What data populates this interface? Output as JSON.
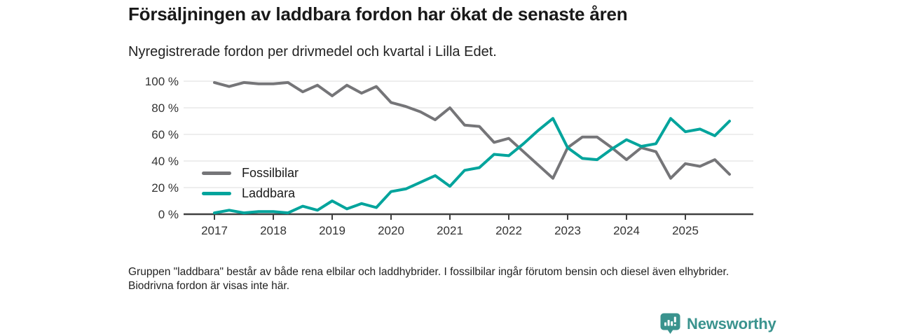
{
  "header": {
    "title": "Försäljningen av laddbara fordon har ökat de senaste åren",
    "subtitle": "Nyregistrerade fordon per drivmedel och kvartal i Lilla Edet."
  },
  "footnote": "Gruppen \"laddbara\" består av både rena elbilar och laddhybrider. I fossilbilar ingår förutom bensin och diesel även elhybrider. Biodrivna fordon är visas inte här.",
  "branding": {
    "logo_icon": "newsworthy-bar-chart-bubble-icon",
    "wordmark": "Newsworthy",
    "color": "#3a938e"
  },
  "chart_data": {
    "type": "line",
    "title": "Försäljningen av laddbara fordon har ökat de senaste åren",
    "subtitle": "Nyregistrerade fordon per drivmedel och kvartal i Lilla Edet.",
    "unit": "percent",
    "ylim": [
      0,
      100
    ],
    "grid": true,
    "legend_position": "inside-left",
    "yticks": [
      "0 %",
      "20 %",
      "40 %",
      "60 %",
      "80 %",
      "100 %"
    ],
    "xticks": [
      {
        "label": "2017",
        "index": 0
      },
      {
        "label": "2018",
        "index": 4
      },
      {
        "label": "2019",
        "index": 8
      },
      {
        "label": "2020",
        "index": 12
      },
      {
        "label": "2021",
        "index": 16
      },
      {
        "label": "2022",
        "index": 20
      },
      {
        "label": "2023",
        "index": 24
      },
      {
        "label": "2024",
        "index": 28
      },
      {
        "label": "2025",
        "index": 32
      }
    ],
    "x": [
      "2017 Q1",
      "2017 Q2",
      "2017 Q3",
      "2017 Q4",
      "2018 Q1",
      "2018 Q2",
      "2018 Q3",
      "2018 Q4",
      "2019 Q1",
      "2019 Q2",
      "2019 Q3",
      "2019 Q4",
      "2020 Q1",
      "2020 Q2",
      "2020 Q3",
      "2020 Q4",
      "2021 Q1",
      "2021 Q2",
      "2021 Q3",
      "2021 Q4",
      "2022 Q1",
      "2022 Q2",
      "2022 Q3",
      "2022 Q4",
      "2023 Q1",
      "2023 Q2",
      "2023 Q3",
      "2023 Q4",
      "2024 Q1",
      "2024 Q2",
      "2024 Q3",
      "2024 Q4",
      "2025 Q1",
      "2025 Q2",
      "2025 Q3",
      "2025 Q4"
    ],
    "series": [
      {
        "name": "Fossilbilar",
        "color": "#757578",
        "values": [
          99,
          96,
          99,
          98,
          98,
          99,
          92,
          97,
          89,
          97,
          91,
          96,
          84,
          81,
          77,
          71,
          80,
          67,
          66,
          54,
          57,
          47,
          37,
          27,
          50,
          58,
          58,
          50,
          41,
          50,
          47,
          27,
          38,
          36,
          41,
          30
        ]
      },
      {
        "name": "Laddbara",
        "color": "#00a49c",
        "values": [
          1,
          3,
          1,
          2,
          2,
          1,
          6,
          3,
          10,
          4,
          8,
          5,
          17,
          19,
          24,
          29,
          21,
          33,
          35,
          45,
          44,
          53,
          63,
          72,
          50,
          42,
          41,
          49,
          56,
          51,
          53,
          72,
          62,
          64,
          59,
          70
        ]
      }
    ]
  }
}
